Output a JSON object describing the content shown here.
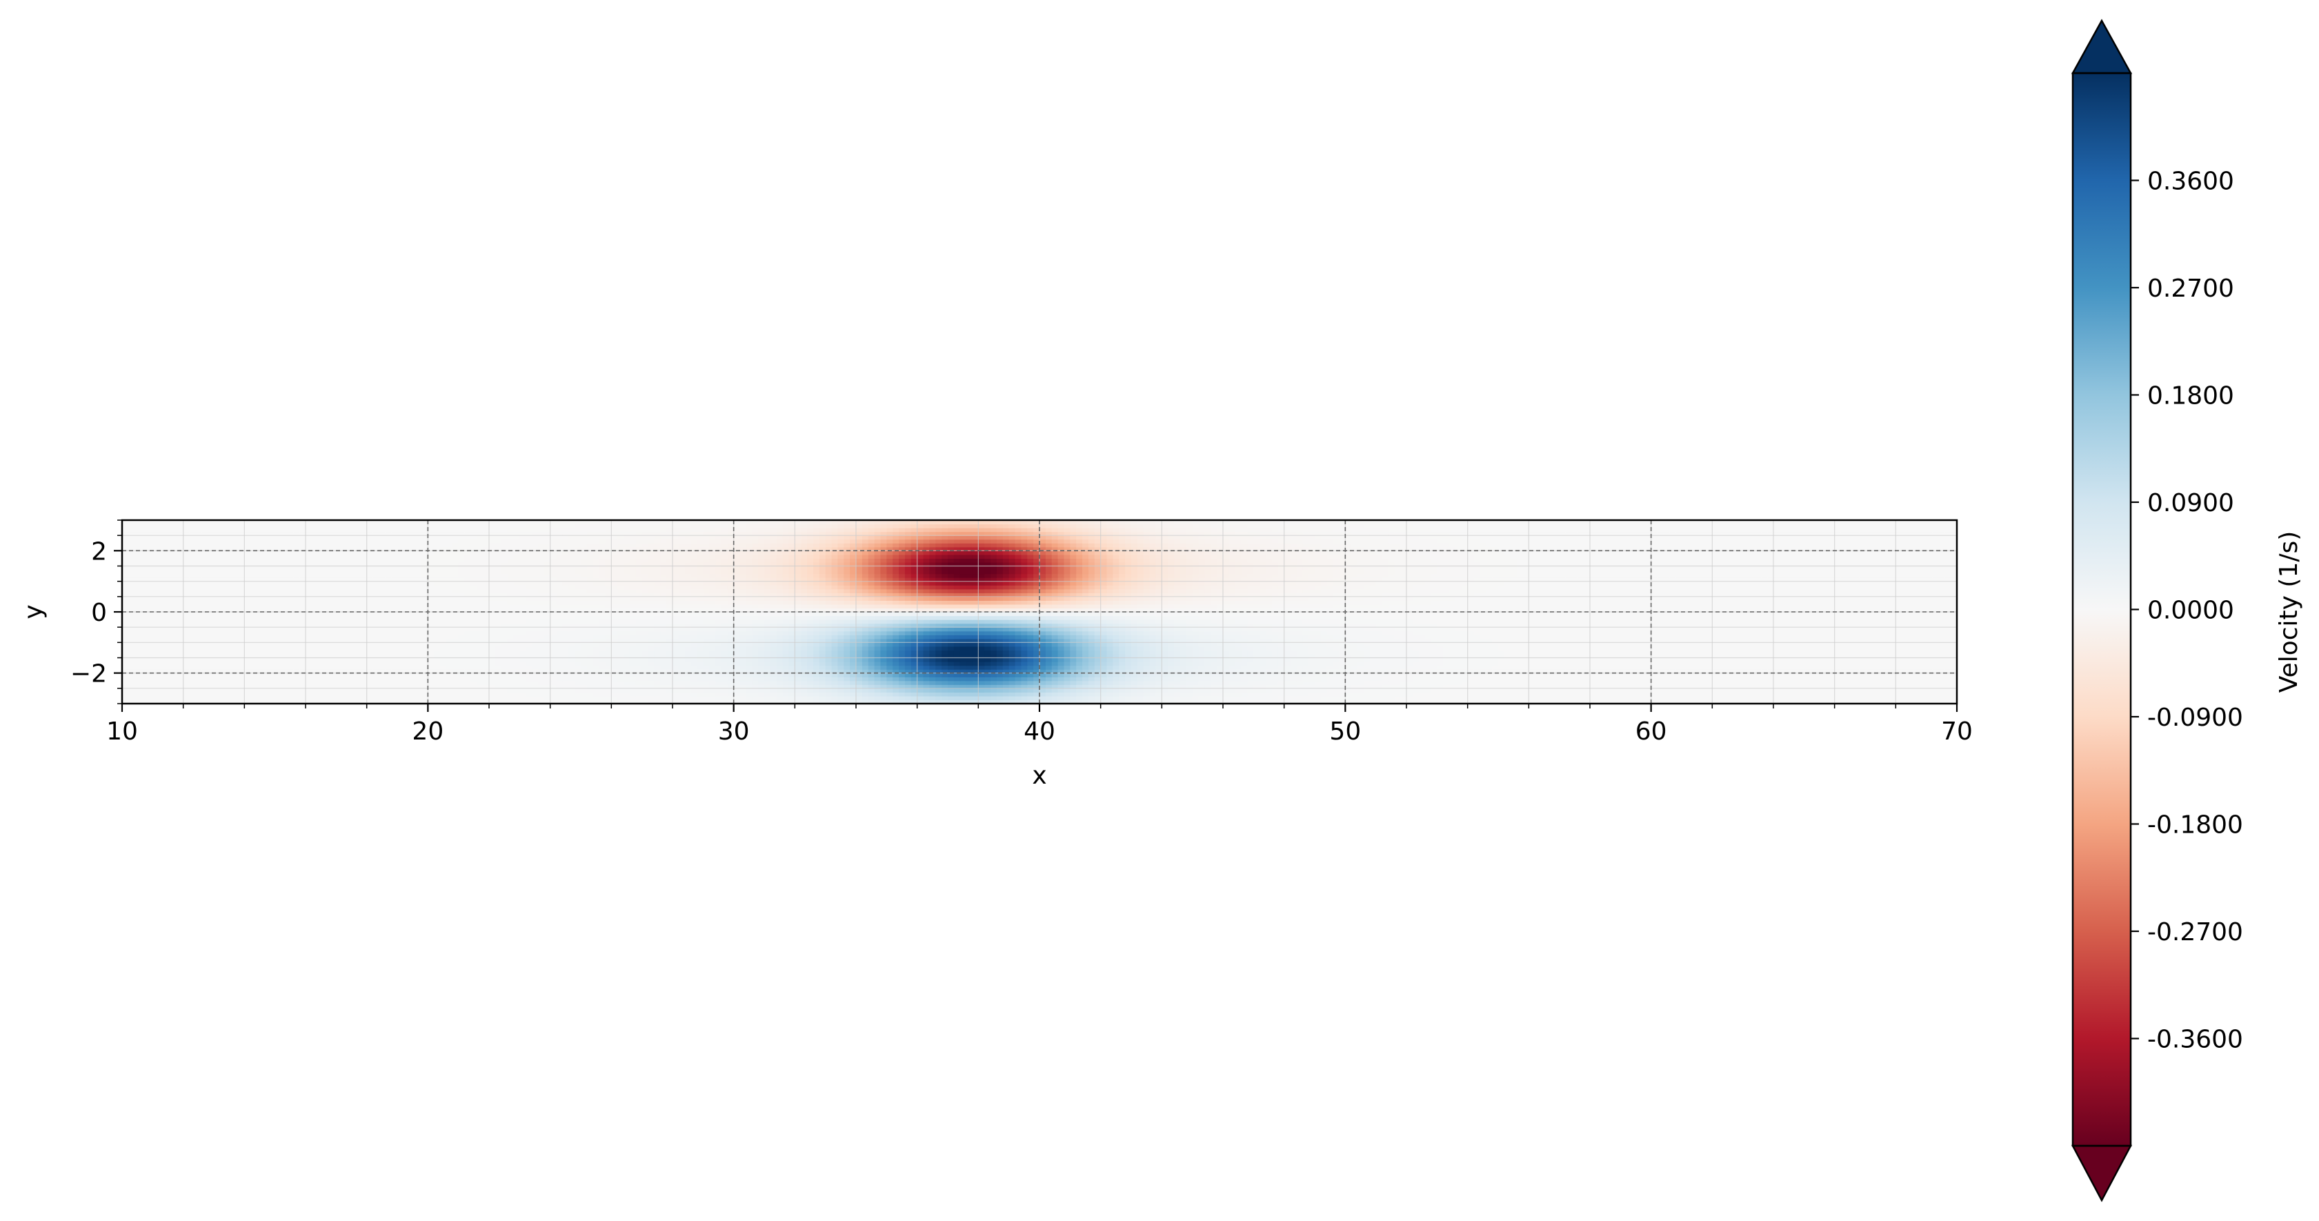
{
  "chart_data": {
    "type": "heatmap",
    "title": "",
    "xlabel": "x",
    "ylabel": "y",
    "xlim": [
      10,
      70
    ],
    "ylim": [
      -3,
      3
    ],
    "x_ticks": [
      "10",
      "20",
      "30",
      "40",
      "50",
      "60",
      "70"
    ],
    "y_ticks": [
      "2",
      "0",
      "−2"
    ],
    "grid": true,
    "field": {
      "description_of_values": "antisymmetric dipole: negative lobe above y=0, positive lobe below y=0",
      "center_x": 37.7,
      "lobe_y": 1.4,
      "peak_value": 0.42,
      "x_halfwidth": 3.6,
      "y_halfwidth": 1.2
    },
    "colorbar": {
      "label": "Velocity (1/s)",
      "colormap": "RdBu",
      "range": [
        -0.45,
        0.45
      ],
      "extend": "both",
      "ticks": [
        "0.3600",
        "0.2700",
        "0.1800",
        "0.0900",
        "0.0000",
        "-0.0900",
        "-0.1800",
        "-0.2700",
        "-0.3600"
      ],
      "tick_values": [
        0.36,
        0.27,
        0.18,
        0.09,
        0.0,
        -0.09,
        -0.18,
        -0.27,
        -0.36
      ],
      "colors": {
        "max": "#053061",
        "high": "#2166ac",
        "mid_high": "#4393c3",
        "low_high": "#92c5de",
        "near_zero_pos": "#d1e5f0",
        "zero": "#f7f7f7",
        "near_zero_neg": "#fddbc7",
        "low_neg": "#f4a582",
        "mid_neg": "#d6604d",
        "neg": "#b2182b",
        "min": "#67001f"
      }
    }
  }
}
